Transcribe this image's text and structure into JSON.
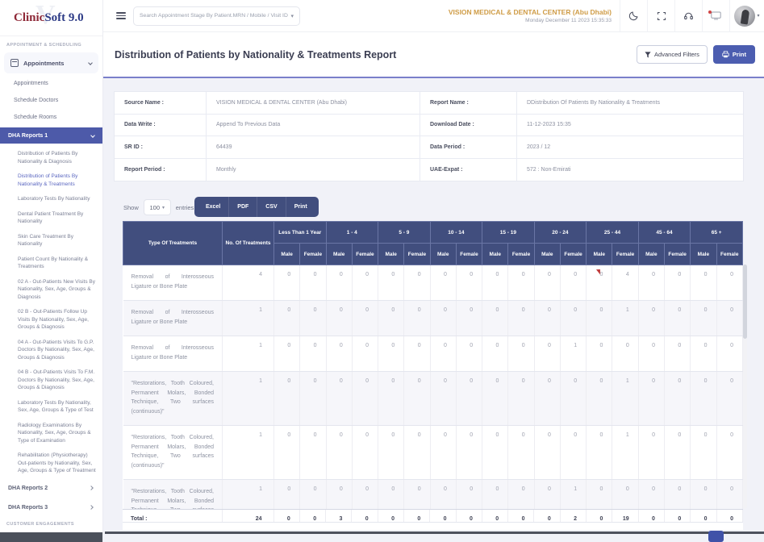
{
  "logo": {
    "part1": "Clinic",
    "part2": "Soft 9.0"
  },
  "topbar": {
    "search_placeholder": "Search Appointment Stage By Patient.MRN / Mobile / Visit ID",
    "clinic_name": "VISION MEDICAL & DENTAL CENTER (Abu Dhabi)",
    "datetime": "Monday December 11 2023 15:35:33"
  },
  "sidebar": {
    "section_label": "APPOINTMENT & SCHEDULING",
    "parent_label": "Appointments",
    "items": [
      "Appointments",
      "Schedule Doctors",
      "Schedule Rooms"
    ],
    "dha1": {
      "label": "DHA Reports 1",
      "subitems": [
        {
          "label": "Distribution of Patients By Nationality & Diagnosis",
          "active": false
        },
        {
          "label": "Distribution of Patients By Nationality & Treatments",
          "active": true
        },
        {
          "label": "Laboratory Tests By Nationality",
          "active": false
        },
        {
          "label": "Dental Patient Treatment By Nationality",
          "active": false
        },
        {
          "label": "Skin Care Treatment By Nationality",
          "active": false
        },
        {
          "label": "Patient Count By Nationality & Treatments",
          "active": false
        },
        {
          "label": "02 A - Out-Patients New Visits By Nationality, Sex, Age, Groups & Diagnosis",
          "active": false
        },
        {
          "label": "02 B - Out-Patients Follow Up Visits By Nationality, Sex, Age, Groups & Diagnosis",
          "active": false
        },
        {
          "label": "04 A - Out-Patients Visits To G.P. Doctors By Nationality, Sex, Age, Groups & Diagnosis",
          "active": false
        },
        {
          "label": "04 B - Out-Patients Visits To F.M. Doctors By Nationality, Sex, Age, Groups & Diagnosis",
          "active": false
        },
        {
          "label": "Laboratory Tests By Nationality, Sex, Age, Groups & Type of Test",
          "active": false
        },
        {
          "label": "Radiology Examinations By Nationality, Sex, Age, Groups & Type of Examination",
          "active": false
        },
        {
          "label": "Rehabilitation (Physiotherapy) Out-patients by Nationality, Sex, Age, Groups & Type of Treatment",
          "active": false
        }
      ]
    },
    "dha2_label": "DHA Reports 2",
    "dha3_label": "DHA Reports 3",
    "bottom_section_label": "CUSTOMER ENGAGEMENTS"
  },
  "page": {
    "title": "Distribution of Patients by Nationality & Treatments Report",
    "advanced_filters_label": "Advanced Filters",
    "print_label": "Print"
  },
  "info": {
    "rows": [
      {
        "l1": "Source Name :",
        "v1": "VISION MEDICAL & DENTAL CENTER (Abu Dhabi)",
        "l2": "Report Name :",
        "v2": "DDistribution Of Patients By Nationality & Treatments"
      },
      {
        "l1": "Data Write :",
        "v1": "Append To Previous Data",
        "l2": "Download Date :",
        "v2": "11-12-2023 15:35"
      },
      {
        "l1": "SR ID :",
        "v1": "64439",
        "l2": "Data Period :",
        "v2": "2023 / 12"
      },
      {
        "l1": "Report Period :",
        "v1": "Monthly",
        "l2": "UAE-Expat :",
        "v2": "572 : Non-Emirati"
      }
    ]
  },
  "controls": {
    "show_label": "Show",
    "page_size": "100",
    "entries_label": "entries",
    "export_buttons": [
      "Excel",
      "PDF",
      "CSV",
      "Print"
    ]
  },
  "table": {
    "col1": "Type Of Treatments",
    "col2": "No. Of Treatments",
    "age_groups": [
      "Less Than 1 Year",
      "1 - 4",
      "5 - 9",
      "10 - 14",
      "15 - 19",
      "20 - 24",
      "25 - 44",
      "45 - 64",
      "65 +"
    ],
    "sex_labels": [
      "Male",
      "Female"
    ],
    "rows": [
      {
        "treatment": "Removal of Interosseous Ligature or Bone Plate",
        "count": 4,
        "values": [
          0,
          0,
          0,
          0,
          0,
          0,
          0,
          0,
          0,
          0,
          0,
          0,
          0,
          4,
          0,
          0,
          0,
          0
        ]
      },
      {
        "treatment": "Removal of Interosseous Ligature or Bone Plate",
        "count": 1,
        "values": [
          0,
          0,
          0,
          0,
          0,
          0,
          0,
          0,
          0,
          0,
          0,
          0,
          0,
          1,
          0,
          0,
          0,
          0
        ]
      },
      {
        "treatment": "Removal of Interosseous Ligature or Bone Plate",
        "count": 1,
        "values": [
          0,
          0,
          0,
          0,
          0,
          0,
          0,
          0,
          0,
          0,
          0,
          1,
          0,
          0,
          0,
          0,
          0,
          0
        ]
      },
      {
        "treatment": "\"Restorations, Tooth Coloured, Permanent Molars, Bonded Technique, Two surfaces (continuous)\"",
        "count": 1,
        "values": [
          0,
          0,
          0,
          0,
          0,
          0,
          0,
          0,
          0,
          0,
          0,
          0,
          0,
          1,
          0,
          0,
          0,
          0
        ]
      },
      {
        "treatment": "\"Restorations, Tooth Coloured, Permanent Molars, Bonded Technique, Two surfaces (continuous)\"",
        "count": 1,
        "values": [
          0,
          0,
          0,
          0,
          0,
          0,
          0,
          0,
          0,
          0,
          0,
          0,
          0,
          1,
          0,
          0,
          0,
          0
        ]
      },
      {
        "treatment": "\"Restorations, Tooth Coloured, Permanent Molars, Bonded Technique, Two surfaces (continuous)\"",
        "count": 1,
        "values": [
          0,
          0,
          0,
          0,
          0,
          0,
          0,
          0,
          0,
          0,
          0,
          1,
          0,
          0,
          0,
          0,
          0,
          0
        ]
      }
    ],
    "total": {
      "label": "Total :",
      "count": 24,
      "values": [
        0,
        0,
        3,
        0,
        0,
        0,
        0,
        0,
        0,
        0,
        0,
        2,
        0,
        19,
        0,
        0,
        0,
        0
      ]
    }
  }
}
